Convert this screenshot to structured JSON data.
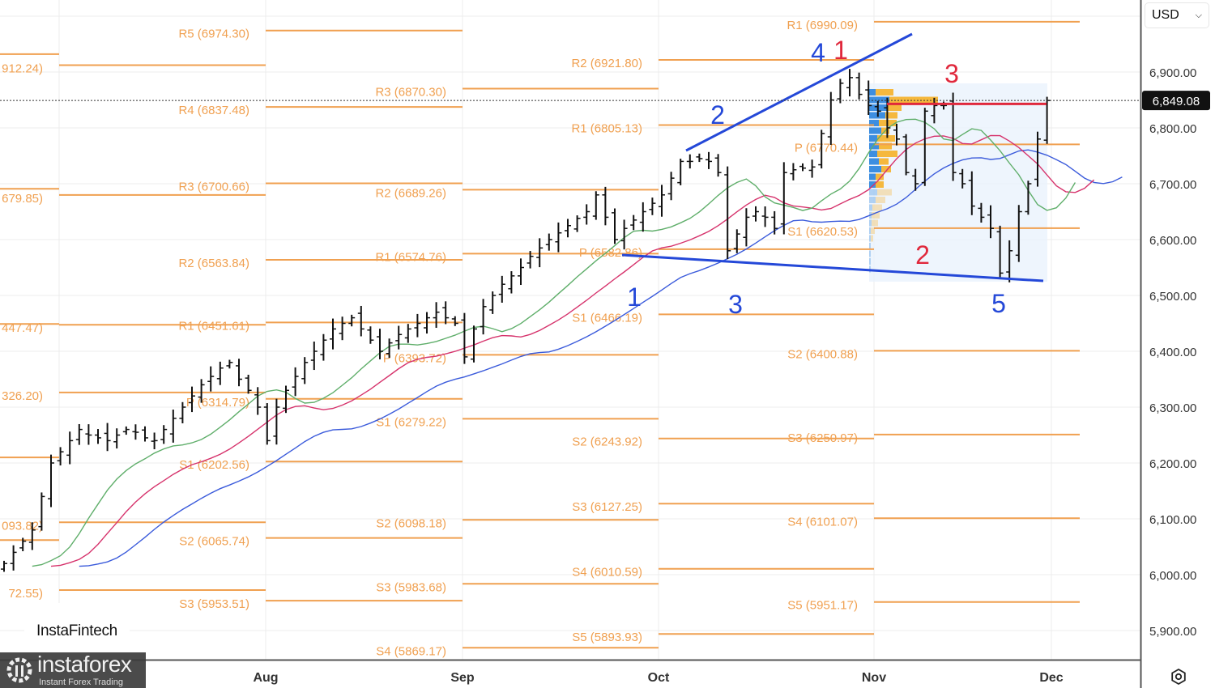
{
  "currency_selector": {
    "value": "USD"
  },
  "chart_data": {
    "type": "ohlc",
    "price_axis": {
      "ticks": [
        6900,
        6800,
        6700,
        6600,
        6500,
        6400,
        6300,
        6200,
        6100,
        6000,
        5900
      ],
      "tick_labels": [
        "6,900.00",
        "6,800.00",
        "6,700.00",
        "6,600.00",
        "6,500.00",
        "6,400.00",
        "6,300.00",
        "6,200.00",
        "6,100.00",
        "6,000.00",
        "5,900.00"
      ],
      "range": [
        5845,
        7010
      ]
    },
    "time_axis": {
      "labels": [
        "Aug",
        "Sep",
        "Oct",
        "Nov",
        "Dec"
      ]
    },
    "grid": true,
    "last_price": 6849.08,
    "last_price_label": "6,849.08",
    "closes": [
      6020,
      6040,
      6060,
      6080,
      6140,
      6200,
      6220,
      6240,
      6260,
      6250,
      6245,
      6240,
      6250,
      6260,
      6255,
      6245,
      6240,
      6260,
      6280,
      6300,
      6320,
      6340,
      6355,
      6370,
      6380,
      6350,
      6330,
      6300,
      6240,
      6300,
      6330,
      6355,
      6380,
      6400,
      6420,
      6440,
      6450,
      6460,
      6440,
      6420,
      6400,
      6415,
      6430,
      6440,
      6450,
      6460,
      6470,
      6460,
      6450,
      6390,
      6440,
      6480,
      6500,
      6520,
      6535,
      6550,
      6570,
      6585,
      6600,
      6612,
      6625,
      6638,
      6650,
      6680,
      6640,
      6600,
      6620,
      6635,
      6650,
      6665,
      6680,
      6710,
      6740,
      6740,
      6745,
      6740,
      6720,
      6580,
      6610,
      6640,
      6650,
      6640,
      6620,
      6720,
      6725,
      6728,
      6730,
      6790,
      6850,
      6880,
      6890,
      6860,
      6840,
      6830,
      6800,
      6780,
      6720,
      6700,
      6830,
      6840,
      6840,
      6720,
      6700,
      6660,
      6640,
      6620,
      6540,
      6580,
      6650,
      6700,
      6780,
      6849.08
    ],
    "indicators": {
      "alligator": {
        "jaw_color": "#3b5bdb",
        "teeth_color": "#d6336c",
        "lips_color": "#5fae6a"
      }
    },
    "pivot_color": "#f0a050",
    "pivot_periods": [
      {
        "month": "Jun",
        "levels": [
          {
            "value": 6932,
            "label": ""
          },
          {
            "value": 6691,
            "label": ""
          },
          {
            "value": 6449,
            "label": ""
          },
          {
            "value": 6210,
            "label": ""
          },
          {
            "value": 6062,
            "label": ""
          }
        ]
      },
      {
        "month": "Jul",
        "levels": [
          {
            "value": 6912.24,
            "label": "912.24)"
          },
          {
            "value": 6679.85,
            "label": "679.85)"
          },
          {
            "value": 6447.47,
            "label": "447.47)"
          },
          {
            "value": 6326.2,
            "label": "326.20)"
          },
          {
            "value": 6093.82,
            "label": "093.82)"
          },
          {
            "value": 5972.55,
            "label": "72.55)"
          }
        ]
      },
      {
        "month": "Aug",
        "levels": [
          {
            "value": 6974.3,
            "label": "R5 (6974.30)"
          },
          {
            "value": 6837.48,
            "label": "R4 (6837.48)"
          },
          {
            "value": 6700.66,
            "label": "R3 (6700.66)"
          },
          {
            "value": 6563.84,
            "label": "R2 (6563.84)"
          },
          {
            "value": 6451.61,
            "label": "R1 (6451.61)"
          },
          {
            "value": 6314.79,
            "label": "P (6314.79)"
          },
          {
            "value": 6202.56,
            "label": "S1 (6202.56)"
          },
          {
            "value": 6065.74,
            "label": "S2 (6065.74)"
          },
          {
            "value": 5953.51,
            "label": "S3 (5953.51)"
          }
        ]
      },
      {
        "month": "Sep",
        "levels": [
          {
            "value": 6870.3,
            "label": "R3 (6870.30)"
          },
          {
            "value": 6689.26,
            "label": "R2 (6689.26)"
          },
          {
            "value": 6574.76,
            "label": "R1 (6574.76)"
          },
          {
            "value": 6393.72,
            "label": "P (6393.72)"
          },
          {
            "value": 6279.22,
            "label": "S1 (6279.22)"
          },
          {
            "value": 6098.18,
            "label": "S2 (6098.18)"
          },
          {
            "value": 5983.68,
            "label": "S3 (5983.68)"
          },
          {
            "value": 5869.17,
            "label": "S4 (5869.17)"
          }
        ]
      },
      {
        "month": "Oct",
        "levels": [
          {
            "value": 6921.8,
            "label": "R2 (6921.80)"
          },
          {
            "value": 6805.13,
            "label": "R1 (6805.13)"
          },
          {
            "value": 6582.86,
            "label": "P (6582.86)"
          },
          {
            "value": 6466.19,
            "label": "S1 (6466.19)"
          },
          {
            "value": 6243.92,
            "label": "S2 (6243.92)"
          },
          {
            "value": 6127.25,
            "label": "S3 (6127.25)"
          },
          {
            "value": 6010.59,
            "label": "S4 (6010.59)"
          },
          {
            "value": 5893.93,
            "label": "S5 (5893.93)"
          }
        ]
      },
      {
        "month": "Nov",
        "levels": [
          {
            "value": 6990.09,
            "label": "R1 (6990.09)"
          },
          {
            "value": 6770.44,
            "label": "P (6770.44)"
          },
          {
            "value": 6620.53,
            "label": "S1 (6620.53)"
          },
          {
            "value": 6400.88,
            "label": "S2 (6400.88)"
          },
          {
            "value": 6250.97,
            "label": "S3 (6250.97)"
          },
          {
            "value": 6101.07,
            "label": "S4 (6101.07)"
          },
          {
            "value": 5951.17,
            "label": "S5 (5951.17)"
          }
        ]
      }
    ],
    "volume_profile": {
      "up_color": "#3d8ee0",
      "down_color": "#f5b83d",
      "rows": [
        [
          8,
          22
        ],
        [
          25,
          60
        ],
        [
          22,
          18
        ],
        [
          20,
          15
        ],
        [
          12,
          22
        ],
        [
          15,
          10
        ],
        [
          10,
          22
        ],
        [
          12,
          16
        ],
        [
          10,
          25
        ],
        [
          12,
          12
        ],
        [
          15,
          12
        ],
        [
          8,
          10
        ],
        [
          8,
          10
        ],
        [
          10,
          18
        ],
        [
          8,
          12
        ],
        [
          4,
          12
        ],
        [
          3,
          10
        ],
        [
          3,
          8
        ],
        [
          2,
          5
        ],
        [
          2,
          3
        ],
        [
          2,
          0
        ],
        [
          2,
          0
        ],
        [
          2,
          0
        ],
        [
          2,
          0
        ]
      ]
    },
    "resistance_level": 6843,
    "wave_labels": {
      "blue": [
        "1",
        "2",
        "3",
        "4",
        "5"
      ],
      "red": [
        "1",
        "2",
        "3"
      ]
    },
    "trendline_color": "#2448d8",
    "wave_red_color": "#e0283c"
  },
  "branding": {
    "watermark": "InstaFintech",
    "logo_name": "instaforex",
    "logo_tagline": "Instant Forex Trading"
  }
}
